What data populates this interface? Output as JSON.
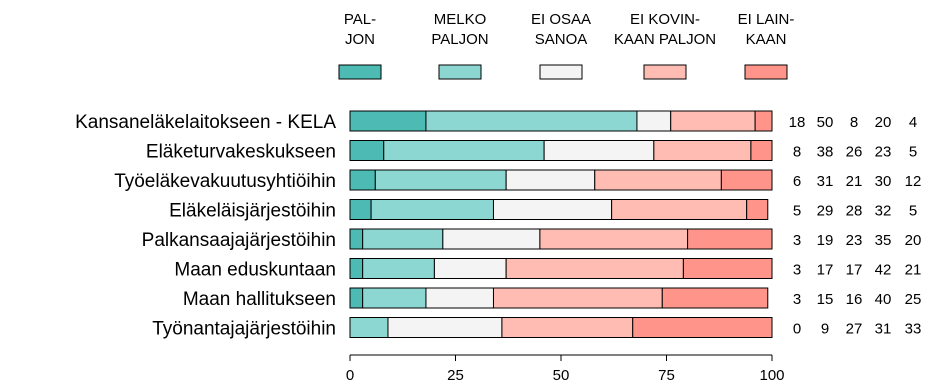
{
  "chart_data": {
    "type": "bar",
    "orientation": "horizontal",
    "stacked": true,
    "grid": false,
    "xlim": [
      0,
      100
    ],
    "xticks": [
      "0",
      "25",
      "50",
      "75",
      "100"
    ],
    "legend_position": "top",
    "categories": [
      "Kansaneläkelaitokseen - KELA",
      "Eläketurvakeskukseen",
      "Työeläkevakuutusyhtiöihin",
      "Eläkeläisjärjestöihin",
      "Palkansaajajärjestöihin",
      "Maan eduskuntaan",
      "Maan hallitukseen",
      "Työnantajajärjestöihin"
    ],
    "series": [
      {
        "name": [
          "PAL-",
          "JON"
        ],
        "color": "#4dbab4",
        "values": [
          18,
          8,
          6,
          5,
          3,
          3,
          3,
          0
        ]
      },
      {
        "name": [
          "MELKO",
          "PALJON"
        ],
        "color": "#8dd7d2",
        "values": [
          50,
          38,
          31,
          29,
          19,
          17,
          15,
          9
        ]
      },
      {
        "name": [
          "EI OSAA",
          "SANOA"
        ],
        "color": "#f4f4f4",
        "values": [
          8,
          26,
          21,
          28,
          23,
          17,
          16,
          27
        ]
      },
      {
        "name": [
          "EI KOVIN-",
          "KAAN PALJON"
        ],
        "color": "#ffbcb2",
        "values": [
          20,
          23,
          30,
          32,
          35,
          42,
          40,
          31
        ]
      },
      {
        "name": [
          "EI LAIN-",
          "KAAN"
        ],
        "color": "#ff948a",
        "values": [
          4,
          5,
          12,
          5,
          20,
          21,
          25,
          33
        ]
      }
    ]
  }
}
